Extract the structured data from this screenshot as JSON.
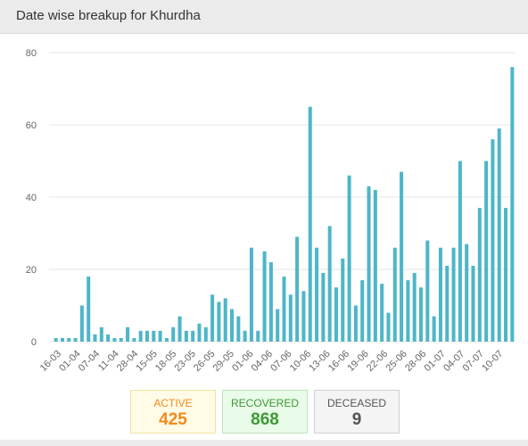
{
  "header": {
    "title": "Date wise breakup for Khurdha"
  },
  "colors": {
    "bar": "#4db6c8",
    "grid": "#e6e6e6",
    "active": "#f28a1c",
    "recovered": "#3c9a35",
    "deceased": "#555555"
  },
  "stats": {
    "active_label": "ACTIVE",
    "active_value": "425",
    "recovered_label": "RECOVERED",
    "recovered_value": "868",
    "deceased_label": "DECEASED",
    "deceased_value": "9"
  },
  "chart_data": {
    "type": "bar",
    "title": "",
    "xlabel": "",
    "ylabel": "",
    "ylim": [
      0,
      80
    ],
    "yticks": [
      0,
      20,
      40,
      60,
      80
    ],
    "grid": true,
    "legend": "none",
    "x_tick_labels": [
      "16-03",
      "01-04",
      "07-04",
      "11-04",
      "28-04",
      "15-05",
      "18-05",
      "23-05",
      "26-05",
      "29-05",
      "01-06",
      "04-06",
      "07-06",
      "10-06",
      "13-06",
      "16-06",
      "19-06",
      "22-06",
      "25-06",
      "28-06",
      "01-07",
      "04-07",
      "07-07",
      "10-07"
    ],
    "values": [
      1,
      1,
      1,
      1,
      10,
      18,
      2,
      4,
      2,
      1,
      1,
      4,
      1,
      3,
      3,
      3,
      3,
      1,
      4,
      7,
      3,
      3,
      5,
      4,
      13,
      11,
      12,
      9,
      7,
      3,
      26,
      3,
      25,
      22,
      9,
      18,
      13,
      29,
      14,
      65,
      26,
      19,
      32,
      15,
      23,
      46,
      10,
      17,
      43,
      42,
      16,
      8,
      26,
      47,
      17,
      19,
      15,
      28,
      7,
      26,
      21,
      26,
      50,
      27,
      21,
      37,
      50,
      56,
      59,
      37,
      76
    ]
  }
}
